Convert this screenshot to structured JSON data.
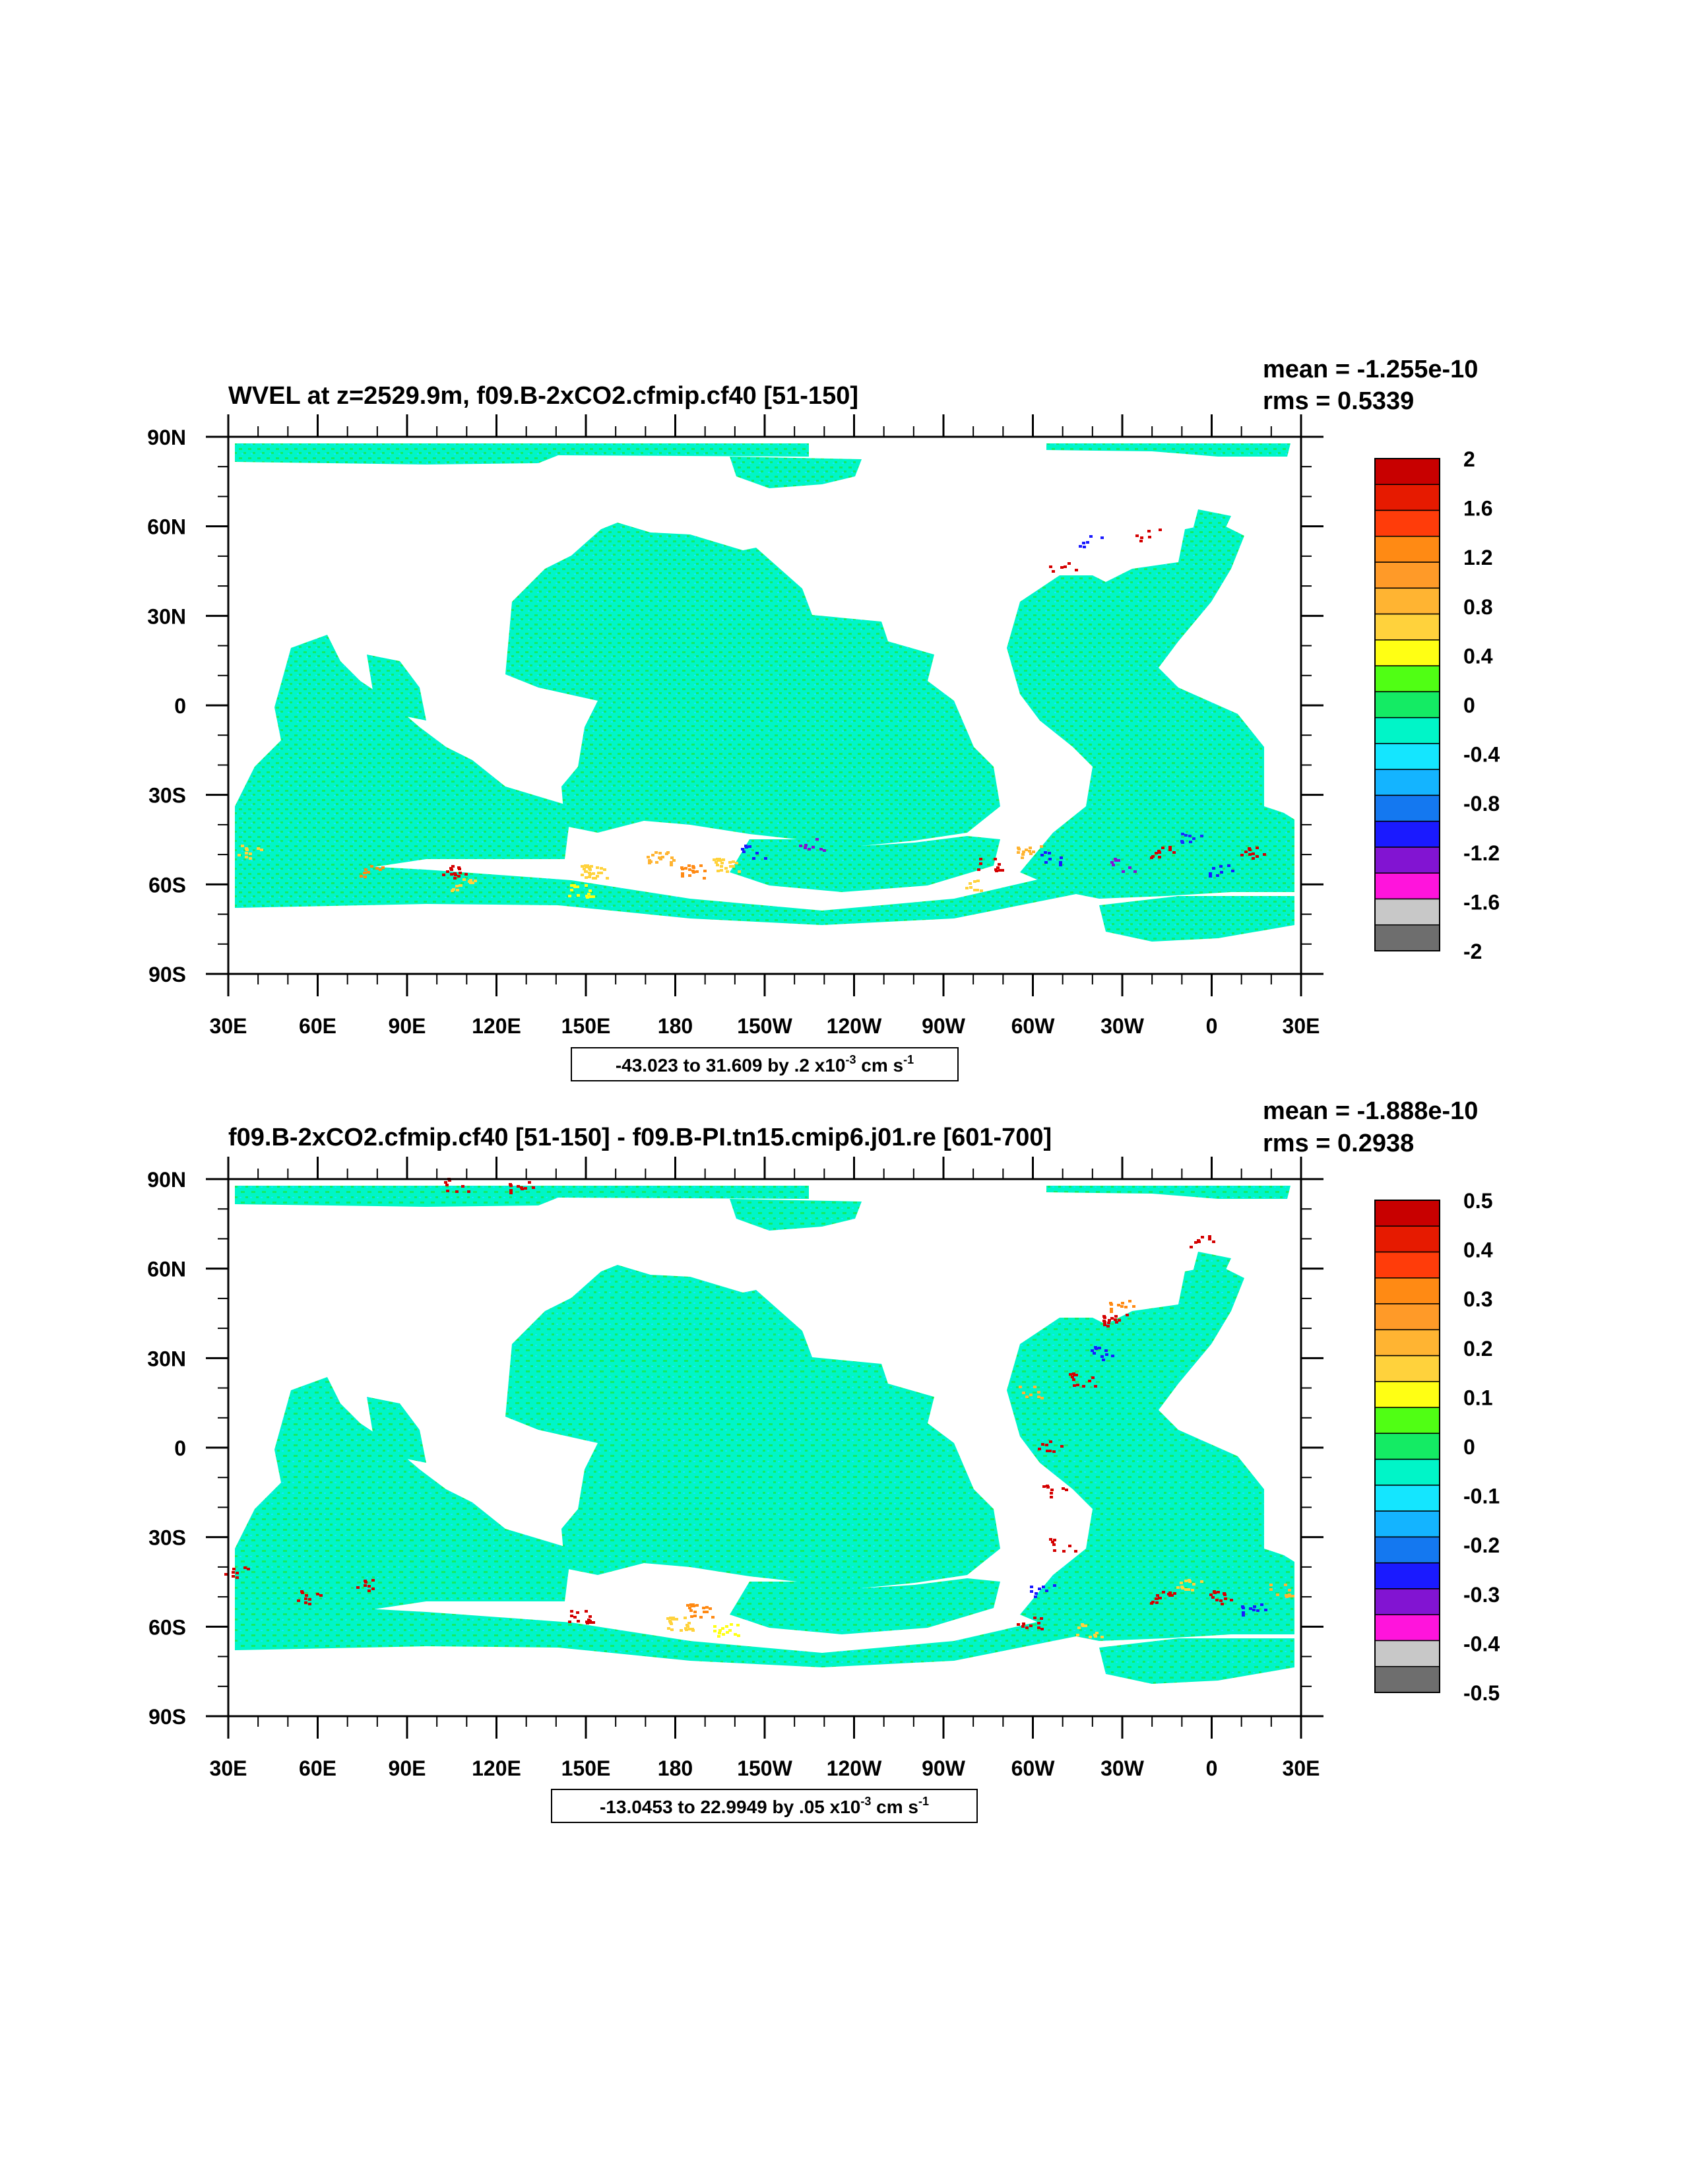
{
  "colors": {
    "ocean": "#00f5c8",
    "ocean_dark": "#12e88f",
    "land": "#ffffff",
    "warm": "#ff9a1a",
    "hot": "#d40000",
    "cold": "#1a2cff",
    "frame": "#000000"
  },
  "axes": {
    "lat_labels": [
      "90N",
      "60N",
      "30N",
      "0",
      "30S",
      "60S",
      "90S"
    ],
    "lon_labels": [
      "30E",
      "60E",
      "90E",
      "120E",
      "150E",
      "180",
      "150W",
      "120W",
      "90W",
      "60W",
      "30W",
      "0",
      "30E"
    ]
  },
  "panels": [
    {
      "title": "WVEL at z=2529.9m, f09.B-2xCO2.cfmip.cf40 [51-150]",
      "stats": {
        "mean": "mean = -1.255e-10",
        "rms": "rms = 0.5339"
      },
      "range_text": {
        "main": "-43.023 to 31.609 by .2 x10",
        "exp": "-3",
        "unit": " cm s",
        "unit_exp": "-1"
      },
      "colorbar": {
        "labels": [
          "2",
          "1.6",
          "1.2",
          "0.8",
          "0.4",
          "0",
          "-0.4",
          "-0.8",
          "-1.2",
          "-1.6",
          "-2"
        ],
        "colors": [
          "#c80000",
          "#e61a00",
          "#ff3c0a",
          "#ff8a14",
          "#ff9a28",
          "#ffb432",
          "#ffd23c",
          "#ffff14",
          "#50ff14",
          "#14eb64",
          "#00f5c8",
          "#14e6ff",
          "#14b4ff",
          "#1478f0",
          "#1a1aff",
          "#8214d2",
          "#ff14dc",
          "#c8c8c8",
          "#6e6e6e"
        ]
      }
    },
    {
      "title": "f09.B-2xCO2.cfmip.cf40 [51-150] - f09.B-PI.tn15.cmip6.j01.re [601-700]",
      "stats": {
        "mean": "mean = -1.888e-10",
        "rms": "rms = 0.2938"
      },
      "range_text": {
        "main": "-13.0453 to 22.9949 by .05 x10",
        "exp": "-3",
        "unit": " cm s",
        "unit_exp": "-1"
      },
      "colorbar": {
        "labels": [
          "0.5",
          "0.4",
          "0.3",
          "0.2",
          "0.1",
          "0",
          "-0.1",
          "-0.2",
          "-0.3",
          "-0.4",
          "-0.5"
        ],
        "colors": [
          "#c80000",
          "#e61a00",
          "#ff3c0a",
          "#ff8a14",
          "#ff9a28",
          "#ffb432",
          "#ffd23c",
          "#ffff14",
          "#50ff14",
          "#14eb64",
          "#00f5c8",
          "#14e6ff",
          "#14b4ff",
          "#1478f0",
          "#1a1aff",
          "#8214d2",
          "#ff14dc",
          "#c8c8c8",
          "#6e6e6e"
        ]
      }
    }
  ]
}
